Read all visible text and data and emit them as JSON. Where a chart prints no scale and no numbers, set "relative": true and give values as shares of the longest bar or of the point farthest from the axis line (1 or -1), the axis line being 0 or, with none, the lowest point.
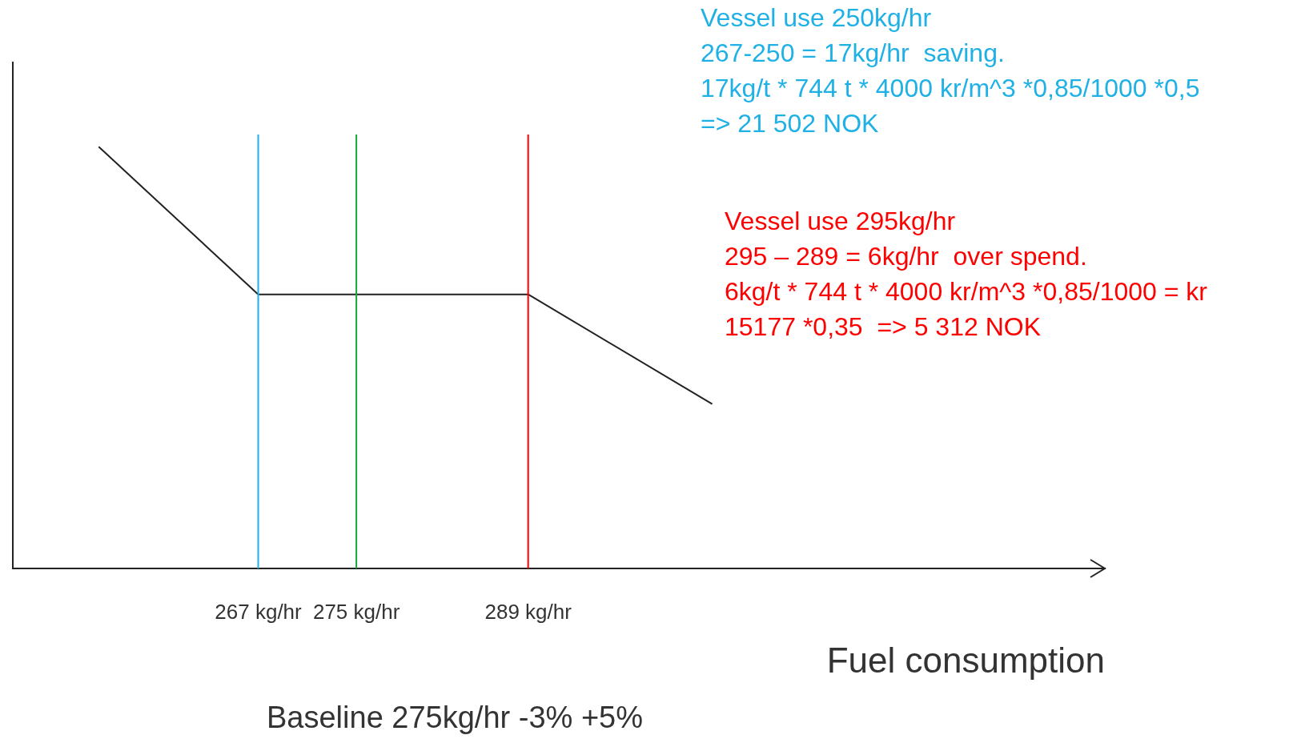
{
  "chart_data": {
    "type": "line",
    "relative": true,
    "xlabel": "Fuel consumption",
    "xlim": [
      247,
      336
    ],
    "xticks": [
      {
        "value": 267,
        "label": "267 kg/hr"
      },
      {
        "value": 275,
        "label": "275 kg/hr"
      },
      {
        "value": 289,
        "label": "289 kg/hr"
      }
    ],
    "series": [
      {
        "color": "#222222",
        "x": [
          254,
          267,
          289,
          304
        ],
        "values": [
          1,
          0.65,
          0.65,
          0.39
        ]
      }
    ],
    "ref_lines": [
      {
        "axis": "x",
        "value": 267,
        "color": "#1fb1e6"
      },
      {
        "axis": "x",
        "value": 289,
        "color": "#ff0000"
      },
      {
        "axis": "x",
        "value": 275,
        "color": "#1aa33a"
      }
    ],
    "annotations": [
      "Vessel use 250kg/hr\n267-250 = 17kg/hr  saving.\n17kg/t * 744 t * 4000 kr/m^3 *0,85/1000 *0,5\n=> 21 502 NOK",
      "Vessel use 295kg/hr\n295 – 289 = 6kg/hr  over spend.\n6kg/t * 744 t * 4000 kr/m^3 *0,85/1000 = kr\n15177 *0,35  => 5 312 NOK",
      "Baseline 275kg/hr -3% +5%"
    ],
    "marker": "none",
    "line_style": "solid",
    "grid": false,
    "legend": false
  }
}
